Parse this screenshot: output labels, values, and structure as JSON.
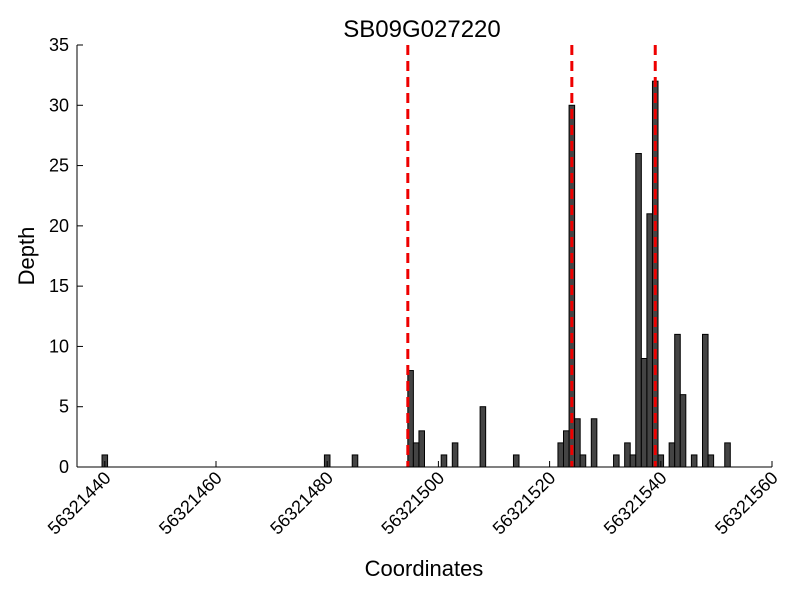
{
  "chart_data": {
    "type": "bar",
    "title": "SB09G027220",
    "xlabel": "Coordinates",
    "ylabel": "Depth",
    "xlim": [
      56321435,
      56321560
    ],
    "ylim": [
      0,
      35
    ],
    "x_ticks": [
      56321440,
      56321460,
      56321480,
      56321500,
      56321520,
      56321540,
      56321560
    ],
    "y_ticks": [
      0,
      5,
      10,
      15,
      20,
      25,
      30,
      35
    ],
    "bar_color": "#444444",
    "bar_edge_color": "#000000",
    "reference_line_color": "#ee0000",
    "reference_lines": [
      56321494.5,
      56321524,
      56321539
    ],
    "bars": [
      {
        "x": 56321440,
        "y": 1
      },
      {
        "x": 56321480,
        "y": 1
      },
      {
        "x": 56321485,
        "y": 1
      },
      {
        "x": 56321495,
        "y": 8
      },
      {
        "x": 56321496,
        "y": 2
      },
      {
        "x": 56321497,
        "y": 3
      },
      {
        "x": 56321501,
        "y": 1
      },
      {
        "x": 56321503,
        "y": 2
      },
      {
        "x": 56321508,
        "y": 5
      },
      {
        "x": 56321514,
        "y": 1
      },
      {
        "x": 56321522,
        "y": 2
      },
      {
        "x": 56321523,
        "y": 3
      },
      {
        "x": 56321524,
        "y": 30
      },
      {
        "x": 56321525,
        "y": 4
      },
      {
        "x": 56321526,
        "y": 1
      },
      {
        "x": 56321528,
        "y": 4
      },
      {
        "x": 56321532,
        "y": 1
      },
      {
        "x": 56321534,
        "y": 2
      },
      {
        "x": 56321535,
        "y": 1
      },
      {
        "x": 56321536,
        "y": 26
      },
      {
        "x": 56321537,
        "y": 9
      },
      {
        "x": 56321538,
        "y": 21
      },
      {
        "x": 56321539,
        "y": 32
      },
      {
        "x": 56321540,
        "y": 1
      },
      {
        "x": 56321542,
        "y": 2
      },
      {
        "x": 56321543,
        "y": 11
      },
      {
        "x": 56321544,
        "y": 6
      },
      {
        "x": 56321546,
        "y": 1
      },
      {
        "x": 56321548,
        "y": 11
      },
      {
        "x": 56321549,
        "y": 1
      },
      {
        "x": 56321552,
        "y": 2
      }
    ]
  }
}
